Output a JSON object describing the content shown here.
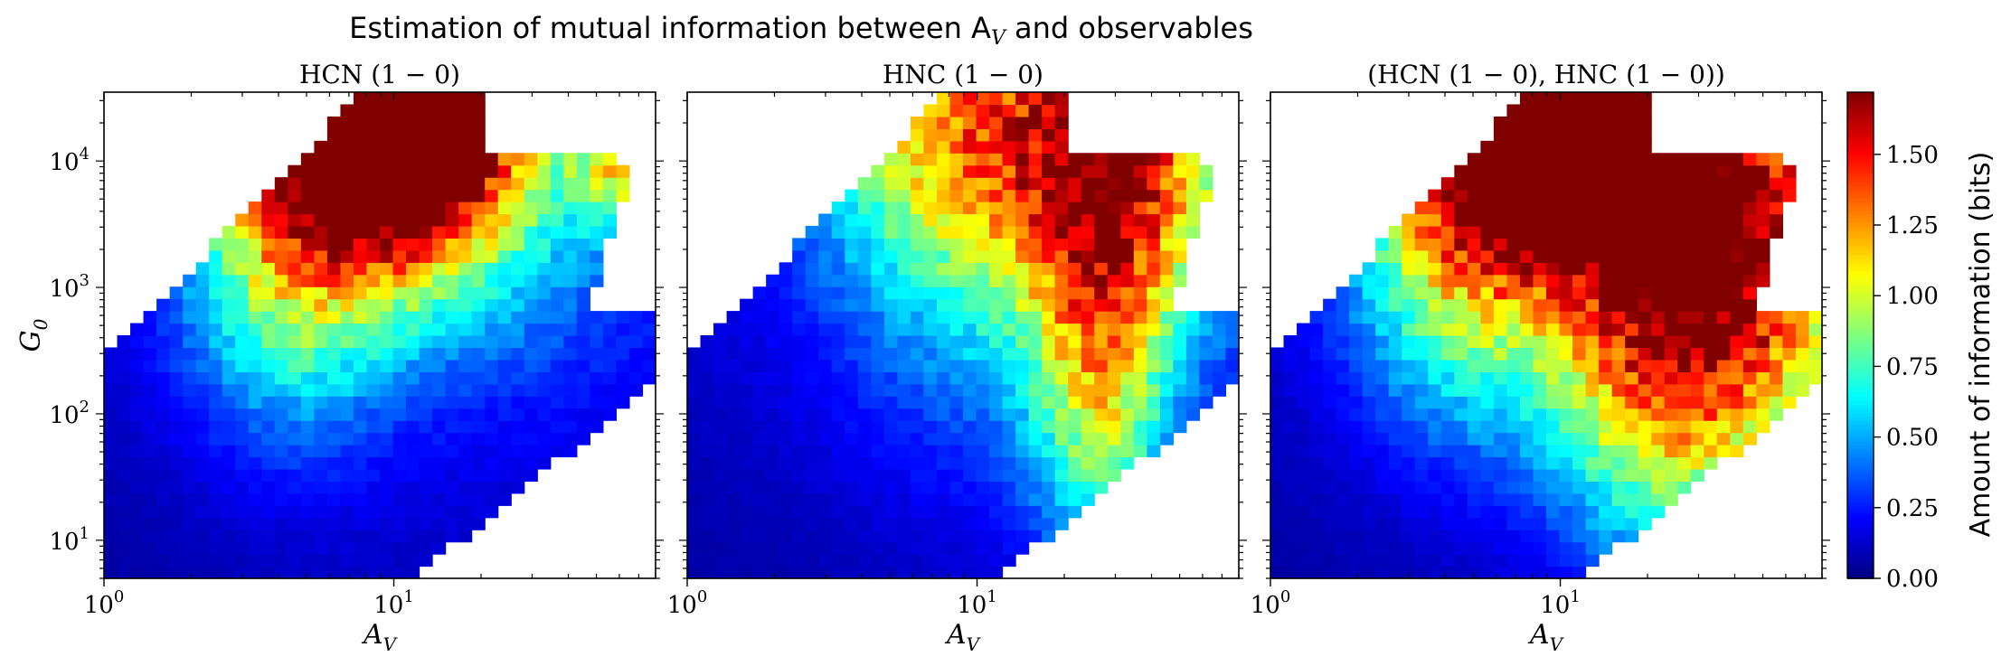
{
  "figure": {
    "suptitle": "Estimation of mutual information between A",
    "suptitle_sub": "V",
    "suptitle_tail": " and observables"
  },
  "colorbar": {
    "label": "Amount of information (bits)",
    "range": [
      0.0,
      1.72
    ],
    "ticks": [
      "0.00",
      "0.25",
      "0.50",
      "0.75",
      "1.00",
      "1.25",
      "1.50"
    ],
    "tick_values": [
      0.0,
      0.25,
      0.5,
      0.75,
      1.0,
      1.25,
      1.5
    ],
    "colormap": "jet"
  },
  "chart_data": [
    {
      "type": "heatmap",
      "title": "HCN (1 − 0)",
      "xlabel": "A",
      "xlabel_sub": "V",
      "ylabel": "G",
      "ylabel_sub": "0",
      "xscale": "log",
      "yscale": "log",
      "xlim": [
        1,
        80
      ],
      "ylim": [
        5,
        35000
      ],
      "x_ticks": [
        {
          "base": "10",
          "exp": "0",
          "value": 1
        },
        {
          "base": "10",
          "exp": "1",
          "value": 10
        }
      ],
      "y_ticks": [
        {
          "base": "10",
          "exp": "1",
          "value": 10
        },
        {
          "base": "10",
          "exp": "2",
          "value": 100
        },
        {
          "base": "10",
          "exp": "3",
          "value": 1000
        },
        {
          "base": "10",
          "exp": "4",
          "value": 10000
        }
      ],
      "hotspots": [
        {
          "x": 11,
          "y": 28000,
          "v": 1.65,
          "sx": 0.18,
          "sy": 0.22
        },
        {
          "x": 8,
          "y": 12000,
          "v": 1.1,
          "sx": 0.22,
          "sy": 0.25
        },
        {
          "x": 4.5,
          "y": 1800,
          "v": 0.75,
          "sx": 0.2,
          "sy": 0.35
        },
        {
          "x": 20,
          "y": 6000,
          "v": 0.45,
          "sx": 0.25,
          "sy": 0.35
        },
        {
          "x": 60,
          "y": 9000,
          "v": 0.7,
          "sx": 0.08,
          "sy": 0.12
        }
      ]
    },
    {
      "type": "heatmap",
      "title": "HNC (1 − 0)",
      "xlabel": "A",
      "xlabel_sub": "V",
      "ylabel": "",
      "ylabel_sub": "",
      "xscale": "log",
      "yscale": "log",
      "xlim": [
        1,
        80
      ],
      "ylim": [
        5,
        35000
      ],
      "x_ticks": [
        {
          "base": "10",
          "exp": "0",
          "value": 1
        },
        {
          "base": "10",
          "exp": "1",
          "value": 10
        }
      ],
      "y_ticks": [],
      "hotspots": [
        {
          "x": 10,
          "y": 22000,
          "v": 0.9,
          "sx": 0.28,
          "sy": 0.3
        },
        {
          "x": 35,
          "y": 9000,
          "v": 0.85,
          "sx": 0.2,
          "sy": 0.3
        },
        {
          "x": 27,
          "y": 200,
          "v": 0.75,
          "sx": 0.12,
          "sy": 0.4
        },
        {
          "x": 12,
          "y": 1200,
          "v": 0.35,
          "sx": 0.3,
          "sy": 0.4
        }
      ]
    },
    {
      "type": "heatmap",
      "title": "(HCN (1 − 0), HNC (1 − 0))",
      "xlabel": "A",
      "xlabel_sub": "V",
      "ylabel": "",
      "ylabel_sub": "",
      "xscale": "log",
      "yscale": "log",
      "xlim": [
        1,
        80
      ],
      "ylim": [
        5,
        35000
      ],
      "x_ticks": [
        {
          "base": "10",
          "exp": "0",
          "value": 1
        },
        {
          "base": "10",
          "exp": "1",
          "value": 10
        }
      ],
      "y_ticks": [],
      "hotspots": [
        {
          "x": 10,
          "y": 28000,
          "v": 1.6,
          "sx": 0.18,
          "sy": 0.22
        },
        {
          "x": 8,
          "y": 12000,
          "v": 1.15,
          "sx": 0.22,
          "sy": 0.25
        },
        {
          "x": 4.5,
          "y": 1800,
          "v": 0.75,
          "sx": 0.2,
          "sy": 0.35
        },
        {
          "x": 40,
          "y": 900,
          "v": 0.9,
          "sx": 0.25,
          "sy": 0.45
        },
        {
          "x": 30,
          "y": 8000,
          "v": 0.85,
          "sx": 0.25,
          "sy": 0.35
        },
        {
          "x": 20,
          "y": 200,
          "v": 0.6,
          "sx": 0.2,
          "sy": 0.35
        }
      ]
    }
  ]
}
